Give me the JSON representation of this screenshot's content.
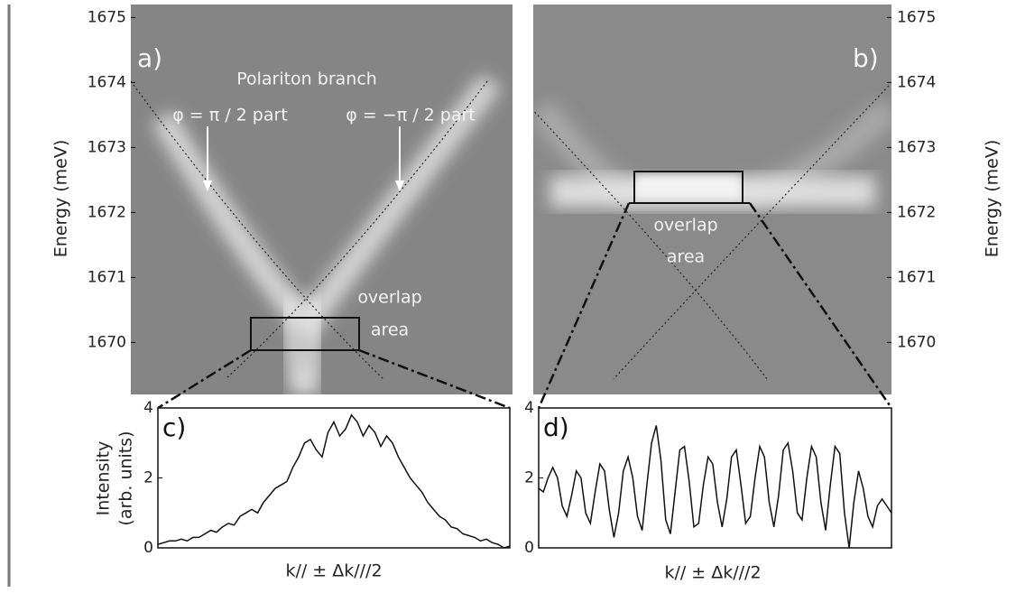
{
  "chart_data": [
    {
      "type": "image",
      "panel": "a)",
      "ylabel": "Energy (meV)",
      "ylim": [
        1669.2,
        1675.2
      ],
      "yticks": [
        1670,
        1671,
        1672,
        1673,
        1674,
        1675
      ],
      "annotations": [
        "Polariton branch",
        "φ = π / 2 part",
        "φ = −π / 2 part"
      ],
      "overlap_label": [
        "overlap",
        "area"
      ]
    },
    {
      "type": "image",
      "panel": "b)",
      "ylabel": "Energy (meV)",
      "ylim": [
        1669.2,
        1675.2
      ],
      "yticks": [
        1670,
        1671,
        1672,
        1673,
        1674,
        1675
      ],
      "overlap_label": [
        "overlap",
        "area"
      ]
    },
    {
      "type": "line",
      "panel": "c)",
      "ylabel": [
        "Intensity",
        "(arb. units)"
      ],
      "xlabel": "k// ± Δk///2",
      "color": "#111111",
      "ylim": [
        0,
        4
      ],
      "yticks": [
        0,
        2,
        4
      ],
      "values": [
        0.1,
        0.15,
        0.2,
        0.2,
        0.25,
        0.2,
        0.3,
        0.3,
        0.4,
        0.5,
        0.45,
        0.6,
        0.7,
        0.65,
        0.9,
        1.0,
        1.1,
        1.0,
        1.3,
        1.5,
        1.7,
        1.8,
        1.9,
        2.3,
        2.6,
        3.0,
        3.1,
        2.8,
        2.6,
        3.3,
        3.6,
        3.2,
        3.4,
        3.8,
        3.6,
        3.2,
        3.5,
        3.3,
        2.9,
        3.2,
        3.0,
        2.6,
        2.3,
        2.0,
        1.8,
        1.6,
        1.3,
        1.1,
        0.9,
        0.8,
        0.6,
        0.55,
        0.4,
        0.35,
        0.3,
        0.2,
        0.25,
        0.15,
        0.1,
        0.0,
        0.05
      ]
    },
    {
      "type": "line",
      "panel": "d)",
      "xlabel": "k// ± Δk///2",
      "color": "#111111",
      "ylim": [
        0,
        4
      ],
      "yticks": [
        0,
        2,
        4
      ],
      "values": [
        1.7,
        1.6,
        2.0,
        2.3,
        2.0,
        1.2,
        0.9,
        1.5,
        2.2,
        2.0,
        1.0,
        0.7,
        1.6,
        2.4,
        2.2,
        1.1,
        0.3,
        1.0,
        2.2,
        2.6,
        2.0,
        0.9,
        0.5,
        1.8,
        3.0,
        3.5,
        2.5,
        0.8,
        0.4,
        1.6,
        2.8,
        2.9,
        1.9,
        0.6,
        0.7,
        1.8,
        2.6,
        2.4,
        1.3,
        0.6,
        1.4,
        2.6,
        2.8,
        1.8,
        0.7,
        0.9,
        2.0,
        2.9,
        2.6,
        1.3,
        0.6,
        1.5,
        2.8,
        3.0,
        2.2,
        1.0,
        0.8,
        2.0,
        2.9,
        2.6,
        1.3,
        0.5,
        1.8,
        2.9,
        2.7,
        1.0,
        0.0,
        1.3,
        2.2,
        1.7,
        0.9,
        0.6,
        1.2,
        1.4,
        1.2,
        1.0
      ]
    }
  ]
}
